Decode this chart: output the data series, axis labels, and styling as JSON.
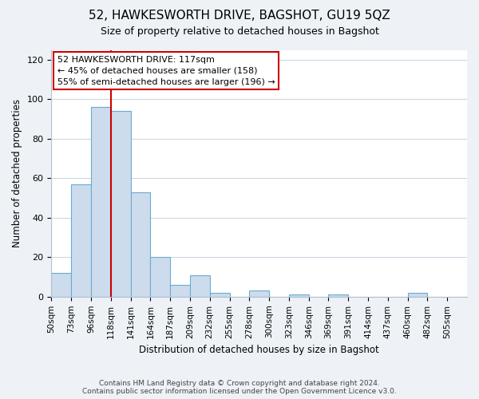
{
  "title": "52, HAWKESWORTH DRIVE, BAGSHOT, GU19 5QZ",
  "subtitle": "Size of property relative to detached houses in Bagshot",
  "xlabel": "Distribution of detached houses by size in Bagshot",
  "ylabel": "Number of detached properties",
  "bin_labels": [
    "50sqm",
    "73sqm",
    "96sqm",
    "118sqm",
    "141sqm",
    "164sqm",
    "187sqm",
    "209sqm",
    "232sqm",
    "255sqm",
    "278sqm",
    "300sqm",
    "323sqm",
    "346sqm",
    "369sqm",
    "391sqm",
    "414sqm",
    "437sqm",
    "460sqm",
    "482sqm",
    "505sqm"
  ],
  "bar_values": [
    12,
    57,
    96,
    94,
    53,
    20,
    6,
    11,
    2,
    0,
    3,
    0,
    1,
    0,
    1,
    0,
    0,
    0,
    2,
    0,
    0
  ],
  "bar_color": "#ccdcec",
  "bar_edge_color": "#6aaad4",
  "vline_x_index": 3,
  "vline_color": "#cc0000",
  "ylim": [
    0,
    125
  ],
  "yticks": [
    0,
    20,
    40,
    60,
    80,
    100,
    120
  ],
  "annotation_line1": "52 HAWKESWORTH DRIVE: 117sqm",
  "annotation_line2": "← 45% of detached houses are smaller (158)",
  "annotation_line3": "55% of semi-detached houses are larger (196) →",
  "annotation_box_color": "#ffffff",
  "annotation_box_edge": "#cc0000",
  "footer_line1": "Contains HM Land Registry data © Crown copyright and database right 2024.",
  "footer_line2": "Contains public sector information licensed under the Open Government Licence v3.0.",
  "background_color": "#eef2f7",
  "plot_bg_color": "#ffffff",
  "grid_color": "#c8d4e0",
  "spine_color": "#b0c0d0"
}
